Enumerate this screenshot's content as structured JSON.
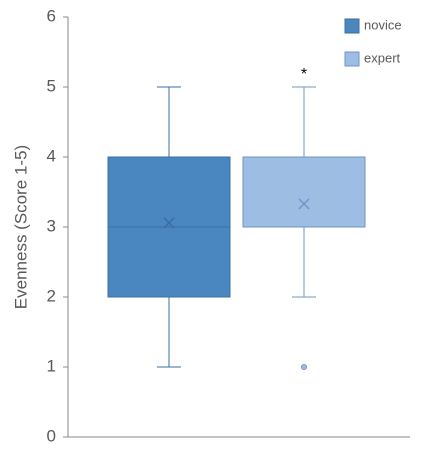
{
  "chart_data": {
    "type": "box",
    "y_label": "Evenness (Score 1-5)",
    "ylim": [
      0,
      6
    ],
    "yticks": [
      0,
      1,
      2,
      3,
      4,
      5,
      6
    ],
    "legend": "upper right",
    "series": [
      {
        "name": "novice",
        "color": "#4a86bf",
        "edge": "#3b6fa3",
        "min": 1,
        "q1": 2,
        "median": 3,
        "q3": 4,
        "max": 5,
        "mean": 3.06,
        "outliers": []
      },
      {
        "name": "expert",
        "color": "#9dbde3",
        "edge": "#6f95c4",
        "min": 2,
        "q1": 3,
        "median": 3,
        "q3": 4,
        "max": 5,
        "mean": 3.33,
        "outliers": [
          1
        ],
        "annotation": "*"
      }
    ]
  }
}
